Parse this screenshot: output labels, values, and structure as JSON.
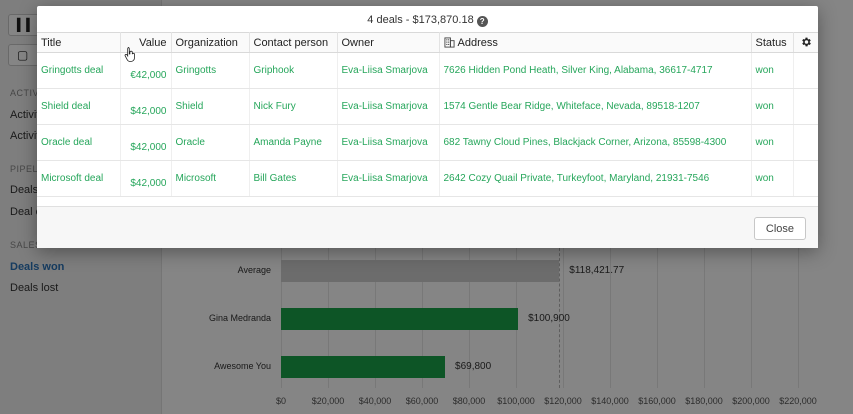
{
  "background": {
    "toolbar_button_1": "",
    "toolbar_button_2": "",
    "sections": [
      {
        "label": "ACTIVIT",
        "items": [
          "Activit",
          "Activit"
        ]
      },
      {
        "label": "PIPELIN",
        "items": [
          "Deals",
          "Deal c"
        ]
      },
      {
        "label": "SALES",
        "items": [
          "Deals won",
          "Deals lost"
        ]
      }
    ],
    "active_item": "Deals won"
  },
  "modal": {
    "title": "4 deals - $173,870.18",
    "help_icon": "question-circle-icon",
    "columns": [
      {
        "key": "title",
        "label": "Title"
      },
      {
        "key": "value",
        "label": "Value"
      },
      {
        "key": "organization",
        "label": "Organization"
      },
      {
        "key": "contact",
        "label": "Contact person"
      },
      {
        "key": "owner",
        "label": "Owner"
      },
      {
        "key": "address",
        "label": "Address",
        "icon": "building-icon"
      },
      {
        "key": "status",
        "label": "Status"
      }
    ],
    "settings_icon": "gear-icon",
    "rows": [
      {
        "title": "Gringotts deal",
        "value": "€42,000",
        "organization": "Gringotts",
        "contact": "Griphook",
        "owner": "Eva-Liisa Smarjova",
        "address": "7626 Hidden Pond Heath, Silver King, Alabama, 36617-4717",
        "status": "won"
      },
      {
        "title": "Shield deal",
        "value": "$42,000",
        "organization": "Shield",
        "contact": "Nick Fury",
        "owner": "Eva-Liisa Smarjova",
        "address": "1574 Gentle Bear Ridge, Whiteface, Nevada, 89518-1207",
        "status": "won"
      },
      {
        "title": "Oracle deal",
        "value": "$42,000",
        "organization": "Oracle",
        "contact": "Amanda Payne",
        "owner": "Eva-Liisa Smarjova",
        "address": "682 Tawny Cloud Pines, Blackjack Corner, Arizona, 85598-4300",
        "status": "won"
      },
      {
        "title": "Microsoft deal",
        "value": "$42,000",
        "organization": "Microsoft",
        "contact": "Bill Gates",
        "owner": "Eva-Liisa Smarjova",
        "address": "2642 Cozy Quail Private, Turkeyfoot, Maryland, 21931-7546",
        "status": "won"
      }
    ],
    "close_label": "Close"
  },
  "chart_data": {
    "type": "bar",
    "orientation": "horizontal",
    "categories": [
      "Average",
      "Gina Medranda",
      "Awesome You"
    ],
    "values": [
      118421.77,
      100900,
      69800
    ],
    "value_labels": [
      "$118,421.77",
      "$100,900",
      "$69,800"
    ],
    "colors": [
      "#cfcfcf",
      "#1aa34a",
      "#1aa34a"
    ],
    "xticks": [
      "$0",
      "$20,000",
      "$40,000",
      "$60,000",
      "$80,000",
      "$100,000",
      "$120,000",
      "$140,000",
      "$160,000",
      "$180,000",
      "$200,000",
      "$220,000"
    ],
    "xlim": [
      0,
      220000
    ],
    "reference_line": 118421.77
  }
}
